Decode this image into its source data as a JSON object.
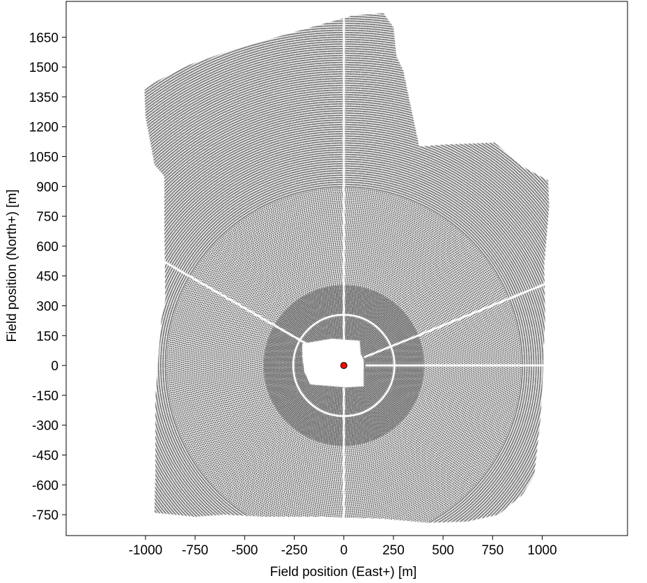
{
  "chart_data": {
    "type": "scatter",
    "title": "",
    "xlabel": "Field position (East+) [m]",
    "ylabel": "Field position (North+) [m]",
    "xlim": [
      -1400,
      1430
    ],
    "ylim": [
      -855,
      1830
    ],
    "x_ticks": [
      -1000,
      -750,
      -500,
      -250,
      0,
      250,
      500,
      750,
      1000
    ],
    "y_ticks": [
      -750,
      -600,
      -450,
      -300,
      -150,
      0,
      150,
      300,
      450,
      600,
      750,
      900,
      1050,
      1200,
      1350,
      1500,
      1650
    ],
    "grid": false,
    "legend": "none",
    "series": [
      {
        "kind": "heliostats",
        "color": "#000000",
        "field_boundary": [
          [
            -1005,
            1385
          ],
          [
            -960,
            1420
          ],
          [
            -780,
            1510
          ],
          [
            -550,
            1590
          ],
          [
            -200,
            1690
          ],
          [
            50,
            1760
          ],
          [
            200,
            1770
          ],
          [
            250,
            1700
          ],
          [
            265,
            1555
          ],
          [
            300,
            1480
          ],
          [
            380,
            1100
          ],
          [
            500,
            1110
          ],
          [
            760,
            1120
          ],
          [
            900,
            1000
          ],
          [
            1030,
            930
          ],
          [
            1035,
            800
          ],
          [
            1010,
            500
          ],
          [
            1015,
            250
          ],
          [
            1000,
            -120
          ],
          [
            990,
            -280
          ],
          [
            960,
            -550
          ],
          [
            900,
            -650
          ],
          [
            780,
            -750
          ],
          [
            620,
            -785
          ],
          [
            420,
            -790
          ],
          [
            190,
            -770
          ],
          [
            -100,
            -760
          ],
          [
            -250,
            -760
          ],
          [
            -400,
            -760
          ],
          [
            -600,
            -750
          ],
          [
            -750,
            -760
          ],
          [
            -955,
            -740
          ],
          [
            -950,
            -540
          ],
          [
            -950,
            -160
          ],
          [
            -920,
            230
          ],
          [
            -900,
            330
          ],
          [
            -905,
            700
          ],
          [
            -905,
            950
          ],
          [
            -955,
            1010
          ],
          [
            -1000,
            1250
          ]
        ],
        "inner_exclusion": [
          [
            -210,
            110
          ],
          [
            -60,
            135
          ],
          [
            80,
            125
          ],
          [
            85,
            60
          ],
          [
            100,
            30
          ],
          [
            100,
            -105
          ],
          [
            10,
            -110
          ],
          [
            -170,
            -95
          ],
          [
            -200,
            -30
          ],
          [
            -210,
            50
          ]
        ],
        "clear_ring_radius": 255,
        "clear_corridors_deg": [
          90,
          0,
          150,
          270,
          22
        ]
      }
    ],
    "tower": {
      "x": 0,
      "y": 0,
      "color": "#ff0000"
    }
  }
}
